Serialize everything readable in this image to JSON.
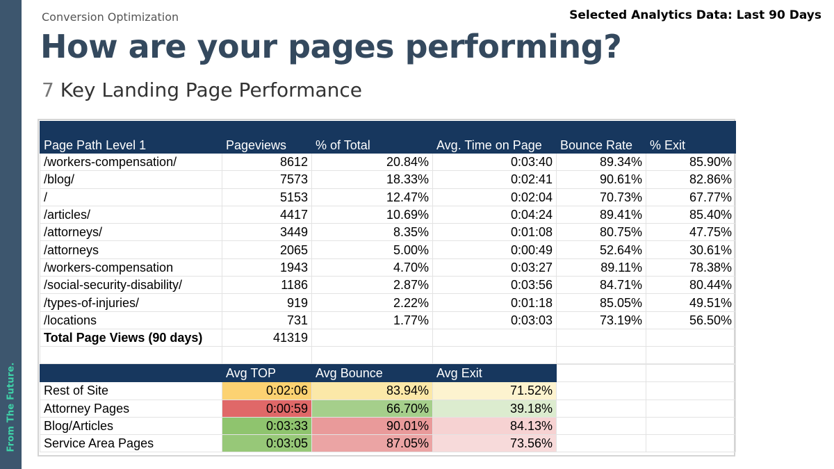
{
  "sidebar": {
    "brand_text": "From The Future."
  },
  "header": {
    "eyebrow": "Conversion Optimization",
    "corner_note": "Selected Analytics Data: Last 90 Days",
    "title": "How are your pages performing?",
    "subtitle_number": "7",
    "subtitle_text": "Key Landing Page Performance"
  },
  "main_table": {
    "headers": [
      "Page Path Level 1",
      "Pageviews",
      "% of Total",
      "Avg. Time on Page",
      "Bounce Rate",
      "% Exit"
    ],
    "rows": [
      [
        "/workers-compensation/",
        "8612",
        "20.84%",
        "0:03:40",
        "89.34%",
        "85.90%"
      ],
      [
        "/blog/",
        "7573",
        "18.33%",
        "0:02:41",
        "90.61%",
        "82.86%"
      ],
      [
        "/",
        "5153",
        "12.47%",
        "0:02:04",
        "70.73%",
        "67.77%"
      ],
      [
        "/articles/",
        "4417",
        "10.69%",
        "0:04:24",
        "89.41%",
        "85.40%"
      ],
      [
        "/attorneys/",
        "3449",
        "8.35%",
        "0:01:08",
        "80.75%",
        "47.75%"
      ],
      [
        "/attorneys",
        "2065",
        "5.00%",
        "0:00:49",
        "52.64%",
        "30.61%"
      ],
      [
        "/workers-compensation",
        "1943",
        "4.70%",
        "0:03:27",
        "89.11%",
        "78.38%"
      ],
      [
        "/social-security-disability/",
        "1186",
        "2.87%",
        "0:03:56",
        "84.71%",
        "80.44%"
      ],
      [
        "/types-of-injuries/",
        "919",
        "2.22%",
        "0:01:18",
        "85.05%",
        "49.51%"
      ],
      [
        "/locations",
        "731",
        "1.77%",
        "0:03:03",
        "73.19%",
        "56.50%"
      ]
    ],
    "total_label": "Total Page Views (90 days)",
    "total_value": "41319"
  },
  "summary_table": {
    "headers": [
      "Avg TOP",
      "Avg Bounce",
      "Avg Exit"
    ],
    "rows": [
      {
        "label": "Rest of Site",
        "top": "0:02:06",
        "bounce": "83.94%",
        "exit": "71.52%",
        "top_color": "#fcd272",
        "bounce_color": "#fbe8a8",
        "exit_color": "#fdf3cf"
      },
      {
        "label": "Attorney Pages",
        "top": "0:00:59",
        "bounce": "66.70%",
        "exit": "39.18%",
        "top_color": "#e06868",
        "bounce_color": "#a5cf8b",
        "exit_color": "#dceccf"
      },
      {
        "label": "Blog/Articles",
        "top": "0:03:33",
        "bounce": "90.01%",
        "exit": "84.13%",
        "top_color": "#8fc46e",
        "bounce_color": "#e99a9a",
        "exit_color": "#f6d2d2"
      },
      {
        "label": "Service Area Pages",
        "top": "0:03:05",
        "bounce": "87.05%",
        "exit": "73.56%",
        "top_color": "#97c878",
        "bounce_color": "#eba4a4",
        "exit_color": "#f7dada"
      }
    ]
  },
  "colors": {
    "title": "#34495e",
    "sidebar": "#3d566e",
    "brand_text": "#3fd1a8",
    "table_header": "#17375e"
  }
}
